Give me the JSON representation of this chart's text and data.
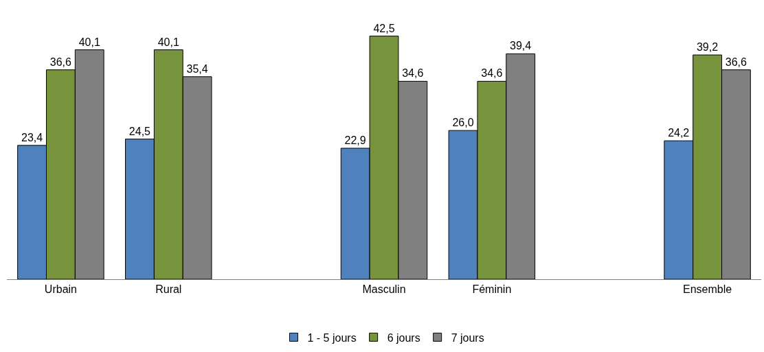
{
  "chart_data": {
    "type": "bar",
    "categories": [
      "Urbain",
      "Rural",
      null,
      "Masculin",
      "Féminin",
      null,
      "Ensemble"
    ],
    "series": [
      {
        "name": "1 - 5 jours",
        "color": "#4f81bd",
        "values": [
          23.4,
          24.5,
          null,
          22.9,
          26.0,
          null,
          24.2
        ],
        "value_labels": [
          "23,4",
          "24,5",
          null,
          "22,9",
          "26,0",
          null,
          "24,2"
        ]
      },
      {
        "name": "6 jours",
        "color": "#77933c",
        "values": [
          36.6,
          40.1,
          null,
          42.5,
          34.6,
          null,
          39.2
        ],
        "value_labels": [
          "36,6",
          "40,1",
          null,
          "42,5",
          "34,6",
          null,
          "39,2"
        ]
      },
      {
        "name": "7 jours",
        "color": "#808080",
        "values": [
          40.1,
          35.4,
          null,
          34.6,
          39.4,
          null,
          36.6
        ],
        "value_labels": [
          "40,1",
          "35,4",
          null,
          "34,6",
          "39,4",
          null,
          "36,6"
        ]
      }
    ],
    "legend": "bottom"
  }
}
